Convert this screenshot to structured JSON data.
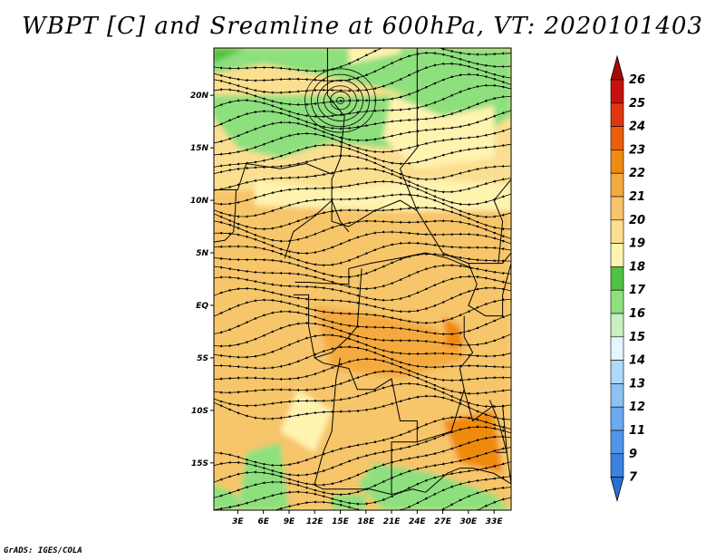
{
  "title": "WBPT [C] and Sreamline at 600hPa, VT: 2020101403",
  "credit": "GrADS: IGES/COLA",
  "chart_data": {
    "type": "heatmap",
    "title": "WBPT [C] and Sreamline at 600hPa, VT: 2020101403",
    "variable": "WBPT [C]",
    "overlay": "streamlines",
    "level": "600hPa",
    "valid_time": "2020101403",
    "x_ticks": [
      "3E",
      "6E",
      "9E",
      "12E",
      "15E",
      "18E",
      "21E",
      "24E",
      "27E",
      "30E",
      "33E"
    ],
    "x_tick_values": [
      3,
      6,
      9,
      12,
      15,
      18,
      21,
      24,
      27,
      30,
      33
    ],
    "y_ticks": [
      "20N",
      "15N",
      "10N",
      "5N",
      "EQ",
      "5S",
      "10S",
      "15S"
    ],
    "y_tick_values": [
      20,
      15,
      10,
      5,
      0,
      -5,
      -10,
      -15
    ],
    "xlim": [
      0.2,
      35
    ],
    "ylim": [
      -19.5,
      24.5
    ],
    "colorbar": {
      "levels": [
        "7",
        "9",
        "11",
        "12",
        "13",
        "14",
        "15",
        "16",
        "17",
        "18",
        "19",
        "20",
        "21",
        "22",
        "23",
        "24",
        "25",
        "26"
      ],
      "colors": [
        "#2a6fd6",
        "#3a82e0",
        "#4f96ea",
        "#6aaaf0",
        "#8cc2f4",
        "#b0d8f8",
        "#e4f6ff",
        "#c8f0c0",
        "#8ee07e",
        "#4fc241",
        "#fff3b0",
        "#fbdf91",
        "#f7c56a",
        "#f5aa40",
        "#f08a10",
        "#ea5f0c",
        "#e0350e",
        "#c8110c",
        "#a80808"
      ],
      "extend": "both"
    },
    "grid": false
  }
}
